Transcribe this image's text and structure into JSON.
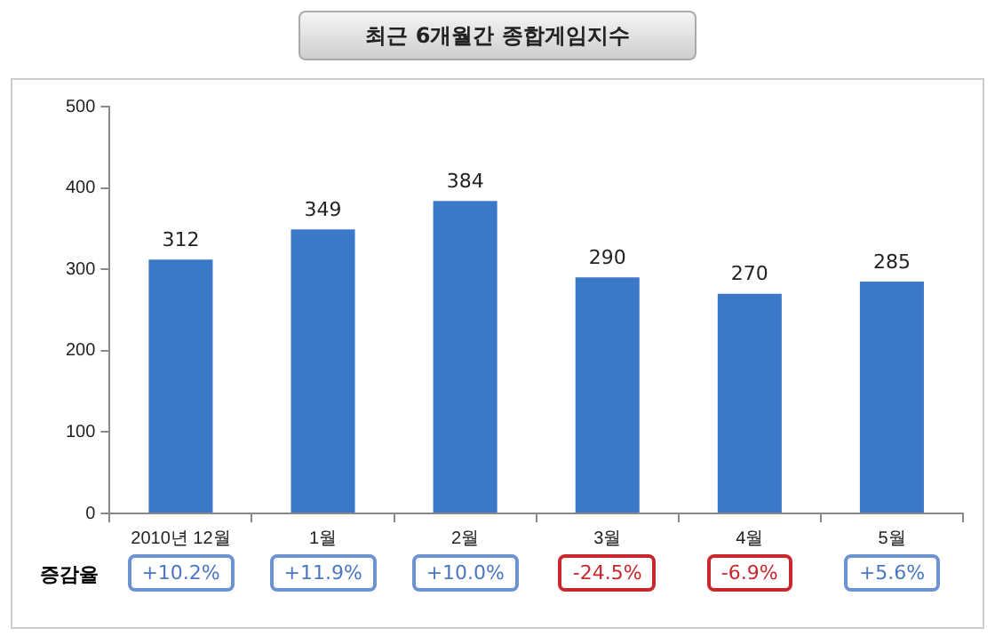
{
  "chart_data": {
    "type": "bar",
    "title": "최근 6개월간 종합게임지수",
    "categories": [
      "2010년 12월",
      "1월",
      "2월",
      "3월",
      "4월",
      "5월"
    ],
    "values": [
      312,
      349,
      384,
      290,
      270,
      285
    ],
    "color": "#3b78c8",
    "ylim": [
      0,
      500
    ],
    "yticks": [
      0,
      100,
      200,
      300,
      400,
      500
    ],
    "grid": false,
    "legend": false,
    "data_labels": true,
    "annotations": [
      "증감율",
      "+10.2%",
      "+11.9%",
      "+10.0%",
      "-24.5%",
      "-6.9%",
      "+5.6%"
    ]
  }
}
